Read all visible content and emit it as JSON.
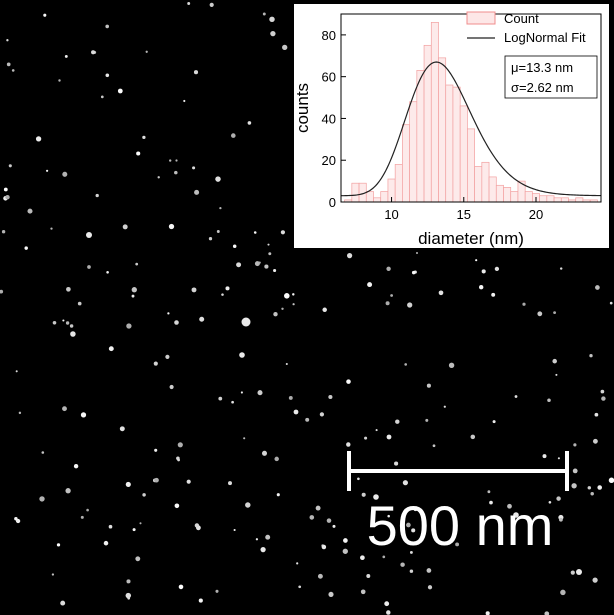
{
  "scale_bar": {
    "label": "500 nm"
  },
  "inset": {
    "legend": {
      "count": "Count",
      "fit": "LogNormal Fit"
    },
    "stats": {
      "mu": "μ=13.3 nm",
      "sigma": "σ=2.62 nm"
    }
  },
  "colors": {
    "background": "#000000",
    "particles": "#e6e6e6",
    "histogram_bar": "#f4a6a6",
    "fit_line": "#222222"
  },
  "chart_data": {
    "type": "bar",
    "xlabel": "diameter (nm)",
    "ylabel": "counts",
    "xlim": [
      6.5,
      24.5
    ],
    "ylim": [
      0,
      90
    ],
    "xticks": [
      10,
      15,
      20
    ],
    "yticks": [
      0,
      20,
      40,
      60,
      80
    ],
    "bin_width": 0.5,
    "bins": [
      {
        "x": 7.0,
        "y": 1
      },
      {
        "x": 7.5,
        "y": 9
      },
      {
        "x": 8.0,
        "y": 9
      },
      {
        "x": 8.5,
        "y": 5
      },
      {
        "x": 9.0,
        "y": 2
      },
      {
        "x": 9.5,
        "y": 5
      },
      {
        "x": 10.0,
        "y": 11
      },
      {
        "x": 10.5,
        "y": 18
      },
      {
        "x": 11.0,
        "y": 37
      },
      {
        "x": 11.5,
        "y": 48
      },
      {
        "x": 12.0,
        "y": 63
      },
      {
        "x": 12.5,
        "y": 75
      },
      {
        "x": 13.0,
        "y": 86
      },
      {
        "x": 13.5,
        "y": 69
      },
      {
        "x": 14.0,
        "y": 56
      },
      {
        "x": 14.5,
        "y": 55
      },
      {
        "x": 15.0,
        "y": 46
      },
      {
        "x": 15.5,
        "y": 35
      },
      {
        "x": 16.0,
        "y": 17
      },
      {
        "x": 16.5,
        "y": 19
      },
      {
        "x": 17.0,
        "y": 12
      },
      {
        "x": 17.5,
        "y": 8
      },
      {
        "x": 18.0,
        "y": 7
      },
      {
        "x": 18.5,
        "y": 5
      },
      {
        "x": 19.0,
        "y": 10
      },
      {
        "x": 19.5,
        "y": 5
      },
      {
        "x": 20.0,
        "y": 4
      },
      {
        "x": 20.5,
        "y": 3
      },
      {
        "x": 21.0,
        "y": 3
      },
      {
        "x": 21.5,
        "y": 2
      },
      {
        "x": 22.0,
        "y": 2
      },
      {
        "x": 22.5,
        "y": 1
      },
      {
        "x": 23.0,
        "y": 2
      },
      {
        "x": 23.5,
        "y": 1
      },
      {
        "x": 24.0,
        "y": 1
      }
    ],
    "fit": {
      "type": "lognormal",
      "peak_x": 13.1,
      "peak_y": 67,
      "baseline": 3,
      "log_sigma": 0.17
    },
    "legend_position": "top-right"
  }
}
